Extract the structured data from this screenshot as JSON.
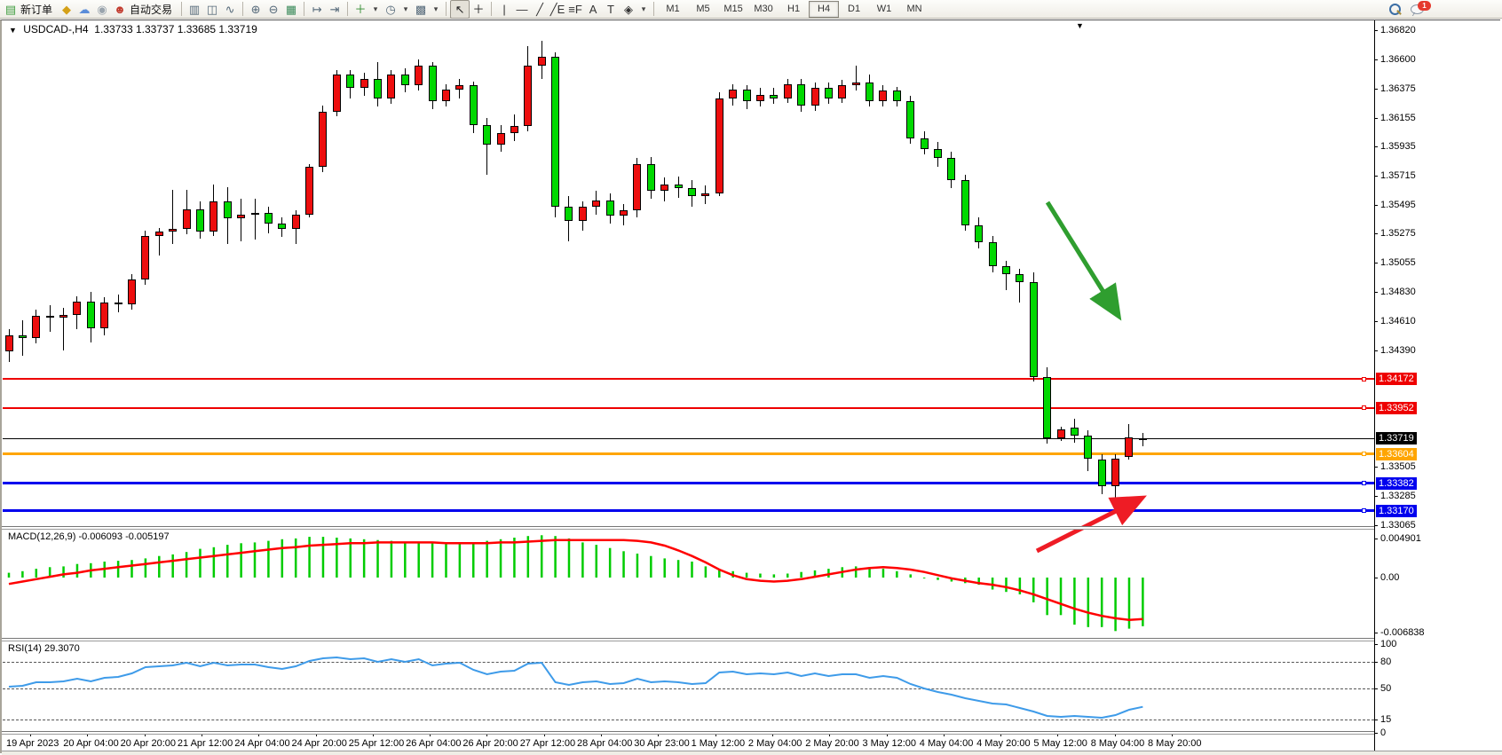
{
  "toolbar": {
    "new_order_label": "新订单",
    "auto_trading_label": "自动交易",
    "icons_left": [
      {
        "name": "new-order-icon",
        "glyph": "▤",
        "color": "#3f9e3f",
        "label_key": "new_order_label"
      },
      {
        "name": "seal-icon",
        "glyph": "◆",
        "color": "#d4a017"
      },
      {
        "name": "publisher-icon",
        "glyph": "☁",
        "color": "#5b8dd9"
      },
      {
        "name": "signal-icon",
        "glyph": "◉",
        "color": "#9aa4ad"
      },
      {
        "name": "autotrading-icon",
        "glyph": "☻",
        "color": "#c23b2e",
        "label_key": "auto_trading_label"
      },
      {
        "sep": true
      },
      {
        "name": "bar-chart-icon",
        "glyph": "▥",
        "color": "#566a7a"
      },
      {
        "name": "candlestick-chart-icon",
        "glyph": "◫",
        "color": "#566a7a"
      },
      {
        "name": "line-chart-icon",
        "glyph": "∿",
        "color": "#566a7a"
      },
      {
        "sep": true
      },
      {
        "name": "zoom-in-icon",
        "glyph": "⊕",
        "color": "#566a7a"
      },
      {
        "name": "zoom-out-icon",
        "glyph": "⊖",
        "color": "#566a7a"
      },
      {
        "name": "tile-windows-icon",
        "glyph": "▦",
        "color": "#3a8a5a"
      },
      {
        "sep": true
      },
      {
        "name": "auto-scroll-icon",
        "glyph": "↦",
        "color": "#566a7a"
      },
      {
        "name": "chart-shift-icon",
        "glyph": "⇥",
        "color": "#566a7a"
      },
      {
        "sep": true
      },
      {
        "name": "indicators-icon",
        "glyph": "＋",
        "color": "#2e8b2e",
        "dropdown": true
      },
      {
        "name": "period-icon",
        "glyph": "◷",
        "color": "#566a7a",
        "dropdown": true
      },
      {
        "name": "template-icon",
        "glyph": "▩",
        "color": "#566a7a",
        "dropdown": true
      },
      {
        "sep": true
      },
      {
        "name": "cursor-icon",
        "glyph": "↖",
        "color": "#222",
        "active": true
      },
      {
        "name": "crosshair-icon",
        "glyph": "＋",
        "color": "#222"
      },
      {
        "sep": true
      },
      {
        "name": "vertical-line-icon",
        "glyph": "|",
        "color": "#333"
      },
      {
        "name": "horizontal-line-icon",
        "glyph": "—",
        "color": "#333"
      },
      {
        "name": "trendline-icon",
        "glyph": "╱",
        "color": "#333"
      },
      {
        "name": "equidistant-channel-icon",
        "glyph": "╱E",
        "color": "#333"
      },
      {
        "name": "fibonacci-icon",
        "glyph": "≡F",
        "color": "#333"
      },
      {
        "name": "text-icon",
        "glyph": "A",
        "color": "#333"
      },
      {
        "name": "text-label-icon",
        "glyph": "T",
        "color": "#333"
      },
      {
        "name": "arrows-icon",
        "glyph": "◈",
        "color": "#333",
        "dropdown": true
      },
      {
        "sep": true
      }
    ],
    "timeframes": [
      "M1",
      "M5",
      "M15",
      "M30",
      "H1",
      "H4",
      "D1",
      "W1",
      "MN"
    ],
    "active_timeframe": "H4",
    "chat_badge": "1"
  },
  "chart": {
    "collapse_marker": "▼",
    "symbol": "USDCAD-,H4",
    "ohlc_text": "1.33733 1.33737 1.33685 1.33719",
    "shift_marker": "▼",
    "macd_label": "MACD(12,26,9) -0.006093 -0.005197",
    "rsi_label": "RSI(14) 29.3070",
    "axis_ticks": [
      "1.36820",
      "1.36600",
      "1.36375",
      "1.36155",
      "1.35935",
      "1.35715",
      "1.35495",
      "1.35275",
      "1.35055",
      "1.34830",
      "1.34610",
      "1.34390",
      "1.33505",
      "1.33285",
      "1.33065"
    ],
    "price_badges": [
      {
        "label": "1.34172",
        "color": "#ee0000"
      },
      {
        "label": "1.33952",
        "color": "#ee0000"
      },
      {
        "label": "1.33719",
        "color": "#000000"
      },
      {
        "label": "1.33604",
        "color": "#ffa500"
      },
      {
        "label": "1.33382",
        "color": "#0000ee"
      },
      {
        "label": "1.33170",
        "color": "#0000ee"
      }
    ],
    "hlines": [
      {
        "price": 1.34172,
        "color": "#ee0000",
        "width": 2,
        "marker": true
      },
      {
        "price": 1.33952,
        "color": "#ee0000",
        "width": 2,
        "marker": true
      },
      {
        "price": 1.33719,
        "color": "#000000",
        "width": 1,
        "marker": false
      },
      {
        "price": 1.33604,
        "color": "#ffa500",
        "width": 3,
        "marker": true
      },
      {
        "price": 1.33382,
        "color": "#0000ee",
        "width": 3,
        "marker": true
      },
      {
        "price": 1.3317,
        "color": "#0000ee",
        "width": 3,
        "marker": true
      }
    ],
    "macd_axis": [
      "0.004901",
      "0.00",
      "-0.006838"
    ],
    "rsi_axis": [
      "100",
      "80",
      "50",
      "15",
      "0"
    ],
    "date_labels": [
      "19 Apr 2023",
      "20 Apr 04:00",
      "20 Apr 20:00",
      "21 Apr 12:00",
      "24 Apr 04:00",
      "24 Apr 20:00",
      "25 Apr 12:00",
      "26 Apr 04:00",
      "26 Apr 20:00",
      "27 Apr 12:00",
      "28 Apr 04:00",
      "30 Apr 23:00",
      "1 May 12:00",
      "2 May 04:00",
      "2 May 20:00",
      "3 May 12:00",
      "4 May 04:00",
      "4 May 20:00",
      "5 May 12:00",
      "8 May 04:00",
      "8 May 20:00"
    ]
  },
  "chart_data": {
    "type": "candlestick",
    "symbol": "USDCAD",
    "timeframe": "H4",
    "colors": {
      "bull": "#ed0e0e",
      "bear": "#00d800",
      "wick": "#000000",
      "macd_hist": "#00cc00",
      "macd_signal": "#ff0000",
      "rsi_line": "#3e9be9",
      "arrow_green": "#2f9e2f",
      "arrow_red": "#ee1c25"
    },
    "candles": [
      [
        1.3438,
        1.3455,
        1.343,
        1.345
      ],
      [
        1.345,
        1.3462,
        1.3435,
        1.3448
      ],
      [
        1.3448,
        1.347,
        1.3444,
        1.3465
      ],
      [
        1.3465,
        1.3473,
        1.3453,
        1.3464
      ],
      [
        1.3464,
        1.3471,
        1.3439,
        1.3466
      ],
      [
        1.3466,
        1.348,
        1.3455,
        1.3476
      ],
      [
        1.3476,
        1.3483,
        1.3445,
        1.3456
      ],
      [
        1.3456,
        1.3479,
        1.345,
        1.3475
      ],
      [
        1.3475,
        1.3481,
        1.3468,
        1.3474
      ],
      [
        1.3474,
        1.3497,
        1.347,
        1.3493
      ],
      [
        1.3493,
        1.353,
        1.3489,
        1.3526
      ],
      [
        1.3526,
        1.3532,
        1.3511,
        1.3529
      ],
      [
        1.3529,
        1.3561,
        1.352,
        1.3531
      ],
      [
        1.3531,
        1.3561,
        1.3527,
        1.3546
      ],
      [
        1.3546,
        1.3552,
        1.3524,
        1.3529
      ],
      [
        1.3529,
        1.3565,
        1.3526,
        1.3552
      ],
      [
        1.3552,
        1.3563,
        1.352,
        1.3539
      ],
      [
        1.3539,
        1.3554,
        1.3522,
        1.3542
      ],
      [
        1.3542,
        1.3554,
        1.3523,
        1.3543
      ],
      [
        1.3543,
        1.3548,
        1.3528,
        1.3535
      ],
      [
        1.3535,
        1.354,
        1.3525,
        1.3531
      ],
      [
        1.3531,
        1.3545,
        1.352,
        1.3542
      ],
      [
        1.3542,
        1.358,
        1.354,
        1.3578
      ],
      [
        1.3578,
        1.3625,
        1.3574,
        1.362
      ],
      [
        1.362,
        1.3652,
        1.3617,
        1.3648
      ],
      [
        1.3648,
        1.3652,
        1.363,
        1.3638
      ],
      [
        1.3638,
        1.365,
        1.3632,
        1.3645
      ],
      [
        1.3645,
        1.3658,
        1.3624,
        1.363
      ],
      [
        1.363,
        1.3652,
        1.3626,
        1.3648
      ],
      [
        1.3648,
        1.3653,
        1.3635,
        1.364
      ],
      [
        1.364,
        1.366,
        1.3636,
        1.3655
      ],
      [
        1.3655,
        1.3658,
        1.3622,
        1.3628
      ],
      [
        1.3628,
        1.3641,
        1.3624,
        1.3637
      ],
      [
        1.3637,
        1.3645,
        1.363,
        1.364
      ],
      [
        1.364,
        1.3643,
        1.3604,
        1.361
      ],
      [
        1.361,
        1.3615,
        1.3572,
        1.3595
      ],
      [
        1.3595,
        1.361,
        1.359,
        1.3604
      ],
      [
        1.3604,
        1.3618,
        1.3598,
        1.3609
      ],
      [
        1.3609,
        1.367,
        1.3605,
        1.3655
      ],
      [
        1.3655,
        1.3674,
        1.3645,
        1.3662
      ],
      [
        1.3662,
        1.3665,
        1.354,
        1.3548
      ],
      [
        1.3548,
        1.3556,
        1.3522,
        1.3537
      ],
      [
        1.3537,
        1.3552,
        1.353,
        1.3548
      ],
      [
        1.3548,
        1.356,
        1.3542,
        1.3553
      ],
      [
        1.3553,
        1.3558,
        1.3535,
        1.3541
      ],
      [
        1.3541,
        1.355,
        1.3534,
        1.3545
      ],
      [
        1.3545,
        1.3585,
        1.354,
        1.358
      ],
      [
        1.358,
        1.3586,
        1.3554,
        1.356
      ],
      [
        1.356,
        1.357,
        1.3552,
        1.3565
      ],
      [
        1.3565,
        1.3571,
        1.3555,
        1.3562
      ],
      [
        1.3562,
        1.3568,
        1.3548,
        1.3556
      ],
      [
        1.3556,
        1.3564,
        1.355,
        1.3558
      ],
      [
        1.3558,
        1.3635,
        1.3556,
        1.363
      ],
      [
        1.363,
        1.3641,
        1.3625,
        1.3637
      ],
      [
        1.3637,
        1.364,
        1.3622,
        1.3628
      ],
      [
        1.3628,
        1.3638,
        1.3624,
        1.3633
      ],
      [
        1.3633,
        1.3638,
        1.3626,
        1.363
      ],
      [
        1.363,
        1.3645,
        1.3627,
        1.3641
      ],
      [
        1.3641,
        1.3645,
        1.362,
        1.3625
      ],
      [
        1.3625,
        1.3642,
        1.3621,
        1.3638
      ],
      [
        1.3638,
        1.3642,
        1.3626,
        1.363
      ],
      [
        1.363,
        1.3644,
        1.3627,
        1.364
      ],
      [
        1.364,
        1.3655,
        1.3636,
        1.3642
      ],
      [
        1.3642,
        1.3648,
        1.3624,
        1.3628
      ],
      [
        1.3628,
        1.364,
        1.3624,
        1.3636
      ],
      [
        1.3636,
        1.3639,
        1.3624,
        1.3628
      ],
      [
        1.3628,
        1.3632,
        1.3596,
        1.36
      ],
      [
        1.36,
        1.3605,
        1.3588,
        1.3592
      ],
      [
        1.3592,
        1.3597,
        1.3578,
        1.3585
      ],
      [
        1.3585,
        1.359,
        1.3562,
        1.3568
      ],
      [
        1.3568,
        1.3572,
        1.353,
        1.3534
      ],
      [
        1.3534,
        1.354,
        1.3516,
        1.3521
      ],
      [
        1.3521,
        1.3526,
        1.3498,
        1.3503
      ],
      [
        1.3503,
        1.3507,
        1.3485,
        1.3497
      ],
      [
        1.3497,
        1.3501,
        1.3475,
        1.3491
      ],
      [
        1.3491,
        1.3498,
        1.3415,
        1.3419
      ],
      [
        1.3419,
        1.3426,
        1.3368,
        1.3372
      ],
      [
        1.3372,
        1.3381,
        1.337,
        1.3379
      ],
      [
        1.338,
        1.3387,
        1.3369,
        1.3374
      ],
      [
        1.3374,
        1.3378,
        1.3347,
        1.3357
      ],
      [
        1.3356,
        1.336,
        1.333,
        1.3336
      ],
      [
        1.3336,
        1.336,
        1.3319,
        1.3357
      ],
      [
        1.3358,
        1.3383,
        1.3356,
        1.3373
      ],
      [
        1.3371,
        1.3376,
        1.3366,
        1.33719
      ]
    ],
    "macd": {
      "params": "12,26,9",
      "last_main": -0.006093,
      "last_signal": -0.005197,
      "main": [
        0.0006,
        0.0008,
        0.0011,
        0.0013,
        0.0014,
        0.0017,
        0.0018,
        0.002,
        0.0021,
        0.0022,
        0.0024,
        0.0027,
        0.0029,
        0.0032,
        0.0036,
        0.0038,
        0.0041,
        0.0043,
        0.0044,
        0.0046,
        0.0048,
        0.0049,
        0.0051,
        0.0051,
        0.005,
        0.0049,
        0.0048,
        0.0047,
        0.0046,
        0.0044,
        0.0044,
        0.0043,
        0.0042,
        0.0043,
        0.0044,
        0.0046,
        0.0048,
        0.005,
        0.0052,
        0.0053,
        0.0052,
        0.0049,
        0.0044,
        0.0041,
        0.0037,
        0.0033,
        0.003,
        0.0027,
        0.0024,
        0.0022,
        0.002,
        0.0014,
        0.001,
        0.0008,
        0.0006,
        0.0005,
        0.0004,
        0.0005,
        0.0007,
        0.0009,
        0.0011,
        0.0013,
        0.0014,
        0.0013,
        0.0011,
        0.0008,
        0.0004,
        -0.0001,
        -0.0003,
        -0.0005,
        -0.0007,
        -0.0009,
        -0.0015,
        -0.0018,
        -0.0021,
        -0.0031,
        -0.0047,
        -0.0047,
        -0.0059,
        -0.0062,
        -0.0062,
        -0.0067,
        -0.0064,
        -0.006093
      ],
      "signal": [
        -0.0008,
        -0.0005,
        -0.0002,
        0.0001,
        0.0004,
        0.0006,
        0.0009,
        0.0011,
        0.0013,
        0.0015,
        0.0017,
        0.0019,
        0.0021,
        0.0023,
        0.0025,
        0.0027,
        0.0029,
        0.0031,
        0.0033,
        0.0035,
        0.0037,
        0.0038,
        0.004,
        0.0041,
        0.0042,
        0.0043,
        0.0043,
        0.0044,
        0.0044,
        0.0044,
        0.0044,
        0.0044,
        0.0043,
        0.0043,
        0.0043,
        0.0043,
        0.0044,
        0.0044,
        0.0045,
        0.0046,
        0.0047,
        0.0047,
        0.0047,
        0.0047,
        0.0047,
        0.0047,
        0.0046,
        0.0044,
        0.004,
        0.0034,
        0.0027,
        0.0019,
        0.001,
        0.0003,
        -0.0002,
        -0.0004,
        -0.0005,
        -0.0004,
        -0.0002,
        0.0001,
        0.0004,
        0.0007,
        0.001,
        0.0012,
        0.0013,
        0.0012,
        0.001,
        0.0007,
        0.0003,
        -0.0001,
        -0.0004,
        -0.0007,
        -0.0009,
        -0.0012,
        -0.0016,
        -0.0021,
        -0.0027,
        -0.0033,
        -0.0039,
        -0.0044,
        -0.0048,
        -0.0051,
        -0.0053,
        -0.005197
      ]
    },
    "rsi": {
      "params": "14",
      "last": 29.307,
      "levels": [
        80,
        50,
        15
      ],
      "values": [
        52,
        53,
        57,
        57,
        58,
        61,
        58,
        62,
        63,
        67,
        74,
        75,
        76,
        79,
        75,
        79,
        76,
        77,
        77,
        74,
        72,
        75,
        81,
        84,
        85,
        83,
        84,
        80,
        83,
        80,
        83,
        76,
        78,
        79,
        71,
        66,
        69,
        70,
        78,
        79,
        57,
        54,
        57,
        58,
        55,
        56,
        61,
        57,
        58,
        57,
        55,
        56,
        68,
        69,
        66,
        67,
        66,
        68,
        64,
        67,
        64,
        66,
        66,
        62,
        64,
        62,
        55,
        50,
        46,
        43,
        39,
        36,
        33,
        32,
        28,
        24,
        19,
        18,
        19,
        18,
        17,
        20,
        26,
        29.3
      ]
    },
    "annotations": [
      {
        "type": "arrow",
        "name": "down-trend-arrow",
        "color": "#2f9e2f",
        "from": [
          1178,
          227
        ],
        "to": [
          1256,
          352
        ]
      },
      {
        "type": "arrow",
        "name": "up-reversal-arrow",
        "color": "#ee1c25",
        "from": [
          1166,
          620
        ],
        "to": [
          1281,
          562
        ]
      }
    ]
  }
}
